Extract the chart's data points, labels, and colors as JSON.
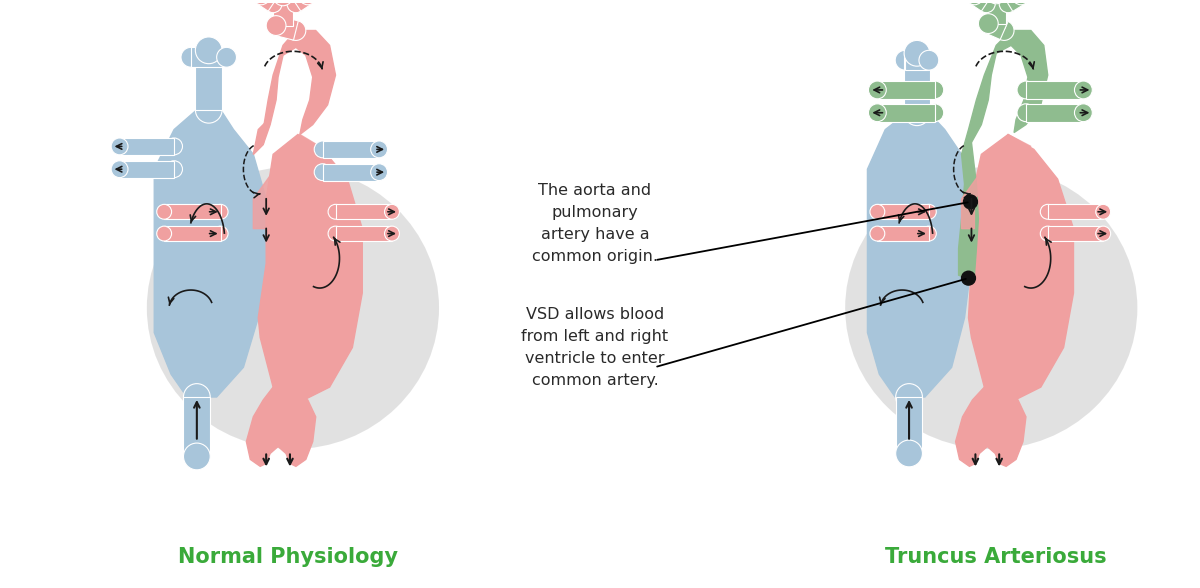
{
  "bg_color": "#ffffff",
  "blue_color": "#a8c5da",
  "pink_color": "#f0a0a0",
  "green_color": "#8fbc8f",
  "peri_color": "#d8d8d8",
  "arrow_color": "#1a1a1a",
  "label_color": "#2a2a2a",
  "title_left": "Normal Physiology",
  "title_right": "Truncus Arteriosus",
  "title_color": "#3aaa3a",
  "annotation1": "The aorta and\npulmonary\nartery have a\ncommon origin.",
  "annotation2": "VSD allows blood\nfrom left and right\nventricle to enter\ncommon artery.",
  "lhx": 2.55,
  "lhy": 3.05,
  "rhx": 9.7,
  "rhy": 3.05
}
